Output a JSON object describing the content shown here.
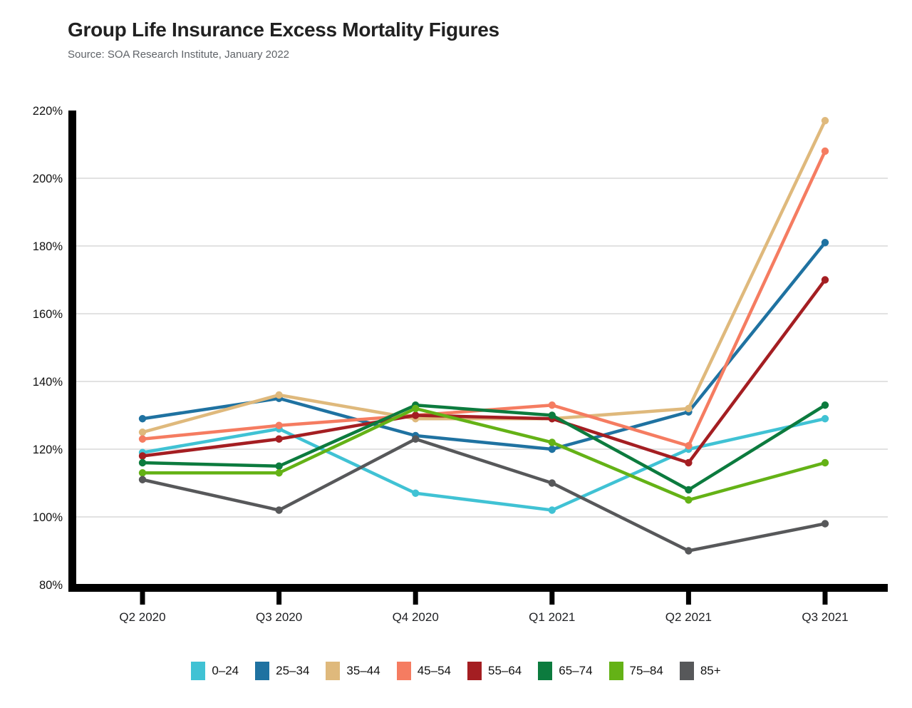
{
  "page": {
    "title": "Group Life Insurance Excess Mortality Figures",
    "source": "Source: SOA Research Institute, January 2022"
  },
  "chart_data": {
    "type": "line",
    "title": "Group Life Insurance Excess Mortality Figures",
    "subtitle": "Source: SOA Research Institute, January 2022",
    "categories": [
      "Q2 2020",
      "Q3 2020",
      "Q4 2020",
      "Q1 2021",
      "Q2 2021",
      "Q3 2021"
    ],
    "xlabel": "",
    "ylabel": "",
    "y_axis": {
      "min": 80,
      "max": 220,
      "step": 20,
      "suffix": "%"
    },
    "grid": "horizontal",
    "legend_position": "bottom",
    "series": [
      {
        "name": "0–24",
        "color": "#40C2D4",
        "values": [
          119,
          126,
          107,
          102,
          120,
          129
        ]
      },
      {
        "name": "25–34",
        "color": "#1F72A1",
        "values": [
          129,
          135,
          124,
          120,
          131,
          181
        ]
      },
      {
        "name": "35–44",
        "color": "#DFB97C",
        "values": [
          125,
          136,
          129,
          129,
          132,
          217
        ]
      },
      {
        "name": "45–54",
        "color": "#F57C61",
        "values": [
          123,
          127,
          130,
          133,
          121,
          208
        ]
      },
      {
        "name": "55–64",
        "color": "#A41E22",
        "values": [
          118,
          123,
          130,
          129,
          116,
          170
        ]
      },
      {
        "name": "65–74",
        "color": "#0C7B3E",
        "values": [
          116,
          115,
          133,
          130,
          108,
          133
        ]
      },
      {
        "name": "75–84",
        "color": "#64B216",
        "values": [
          113,
          113,
          132,
          122,
          105,
          116
        ]
      },
      {
        "name": "85+",
        "color": "#57585A",
        "values": [
          111,
          102,
          123,
          110,
          90,
          98
        ]
      }
    ],
    "style": {
      "axis_color": "#000000",
      "gridline_color": "#e2e2e2",
      "tick_label_color": "#111111",
      "x_label_color": "#202124"
    }
  }
}
